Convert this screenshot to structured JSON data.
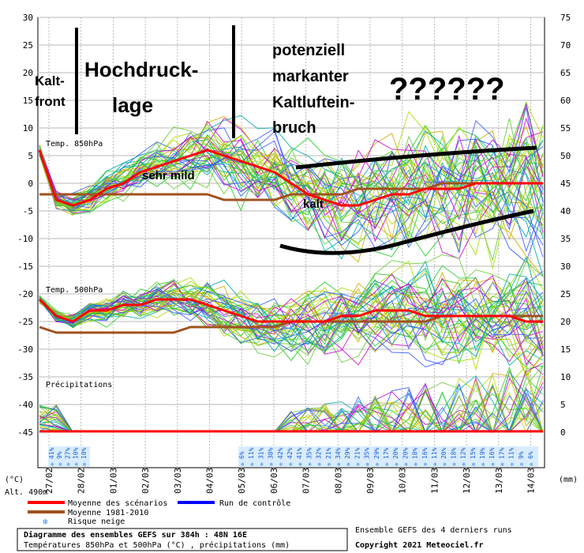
{
  "chart_data": {
    "type": "line",
    "left_axis_label": "(°C)",
    "right_axis_label": "(mm)",
    "alt_label": "Alt. 490m",
    "left_ticks": [
      30,
      25,
      20,
      15,
      10,
      5,
      0,
      -5,
      -10,
      -15,
      -20,
      -25,
      -30,
      -35,
      -40,
      -45
    ],
    "right_ticks": [
      75,
      70,
      65,
      60,
      55,
      50,
      45,
      40,
      35,
      30,
      25,
      20,
      15,
      10,
      5,
      0
    ],
    "x_ticks": [
      "27/02",
      "28/02",
      "01/03",
      "02/03",
      "03/03",
      "04/03",
      "05/03",
      "06/03",
      "07/03",
      "08/03",
      "09/03",
      "10/03",
      "11/03",
      "12/03",
      "13/03",
      "14/03"
    ],
    "section_labels": {
      "t850": "Temp. 850hPa",
      "t500": "Temp. 500hPa",
      "precip": "Précipitations"
    },
    "t850": {
      "mean": [
        6,
        -3,
        -4,
        -3,
        -1,
        0,
        2,
        3,
        4,
        5,
        6,
        5,
        4,
        3,
        2,
        0,
        -2,
        -3,
        -4,
        -4,
        -3,
        -2,
        -2,
        -1,
        -1,
        -1,
        0,
        0,
        0,
        0,
        0
      ],
      "climo": [
        -2,
        -2,
        -2,
        -2,
        -2,
        -2,
        -2,
        -2,
        -2,
        -2,
        -2,
        -3,
        -3,
        -3,
        -3,
        -2,
        -2,
        -2,
        -2,
        -1,
        -1,
        -1,
        -1,
        -1,
        0,
        0,
        0,
        0,
        0,
        0,
        0
      ]
    },
    "t500": {
      "mean": [
        -21,
        -24,
        -25,
        -23,
        -23,
        -22,
        -22,
        -21,
        -21,
        -21,
        -22,
        -23,
        -24,
        -25,
        -25,
        -25,
        -25,
        -25,
        -24,
        -24,
        -23,
        -23,
        -23,
        -24,
        -24,
        -24,
        -24,
        -24,
        -24,
        -25,
        -25
      ],
      "climo": [
        -26,
        -27,
        -27,
        -27,
        -27,
        -27,
        -27,
        -27,
        -27,
        -26,
        -26,
        -26,
        -26,
        -26,
        -26,
        -25,
        -25,
        -25,
        -25,
        -25,
        -25,
        -25,
        -25,
        -25,
        -24,
        -24,
        -24,
        -24,
        -24,
        -24,
        -24
      ]
    },
    "snow_risk_pct_1": [
      "41%",
      "9%",
      "27%",
      "10%",
      "10%"
    ],
    "snow_risk_pct_2": [
      "6%",
      "11%",
      "31%",
      "38%",
      "42%",
      "42%",
      "41%",
      "35%",
      "32%",
      "21%",
      "34%",
      "29%",
      "21%",
      "35%",
      "29%",
      "17%",
      "20%",
      "20%",
      "18%",
      "16%",
      "11%",
      "20%",
      "18%",
      "12%",
      "15%",
      "19%",
      "16%",
      "17%",
      "11%",
      "9%",
      "6%"
    ],
    "annotations": {
      "kaltfront_1": "Kalt-",
      "kaltfront_2": "front",
      "hoch_1": "Hochdruck-",
      "hoch_2": "lage",
      "pot_1": "potenziell",
      "pot_2": "markanter",
      "pot_3": "Kaltluftein-",
      "pot_4": "bruch",
      "question": "??????",
      "mild": "sehr mild",
      "kalt": "kalt"
    },
    "colors": {
      "mean": "#ff0000",
      "climo": "#a0521e",
      "control": "#0000ff",
      "members": [
        "#22cc22",
        "#aadd00",
        "#ccaa00",
        "#cc00cc",
        "#00aaaa",
        "#3355ff",
        "#66cc33"
      ]
    },
    "legend": {
      "mean": "Moyenne des scénarios",
      "control": "Run de contrôle",
      "climo": "Moyenne 1981-2010",
      "snow": "Risque neige"
    },
    "footer": {
      "title": "Diagramme des ensembles GEFS sur 384h : 48N 16E",
      "subtitle": "Températures 850hPa et 500hPa (°C) , précipitations (mm)",
      "runs": "Ensemble GEFS des 4 derniers runs",
      "copyright": "Copyright 2021 Meteociel.fr"
    }
  }
}
